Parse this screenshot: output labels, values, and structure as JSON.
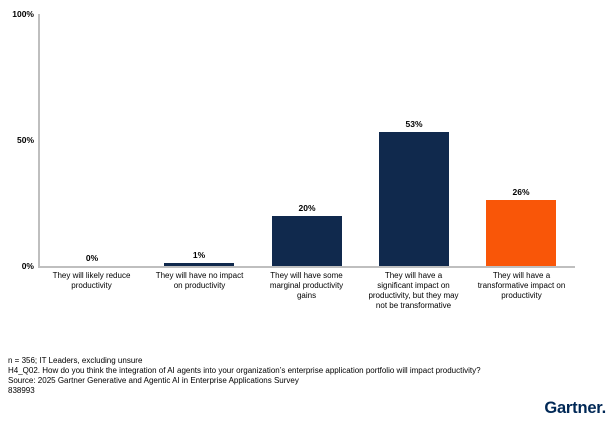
{
  "chart_data": {
    "type": "bar",
    "title": "",
    "xlabel": "",
    "ylabel": "",
    "categories": [
      "They will likely reduce productivity",
      "They will have no impact on productivity",
      "They will have some marginal productivity gains",
      "They will have a significant impact on productivity, but they may not be transformative",
      "They will have a transformative impact on productivity"
    ],
    "values": [
      0,
      1,
      20,
      53,
      26
    ],
    "value_labels": [
      "0%",
      "1%",
      "20%",
      "53%",
      "26%"
    ],
    "bar_colors": [
      "#10294D",
      "#10294D",
      "#10294D",
      "#10294D",
      "#F95608"
    ],
    "ylim": [
      0,
      100
    ],
    "yticks": [
      {
        "label": "0%",
        "value": 0
      },
      {
        "label": "50%",
        "value": 50
      },
      {
        "label": "100%",
        "value": 100
      }
    ],
    "grid": false,
    "legend": "none"
  },
  "footnotes": {
    "lines": [
      "n = 356; IT Leaders, excluding unsure",
      "H4_Q02. How do you think the integration of AI agents into your organization’s enterprise application portfolio will impact productivity?",
      "Source: 2025 Gartner Generative and Agentic AI in Enterprise Applications Survey",
      "838993"
    ]
  },
  "branding": {
    "logo_text": "Gartner."
  },
  "colors": {
    "bar_navy": "#10294D",
    "bar_orange": "#F95608",
    "axis_line": "#BFBFBF",
    "logo_navy": "#002856",
    "text": "#000000"
  }
}
